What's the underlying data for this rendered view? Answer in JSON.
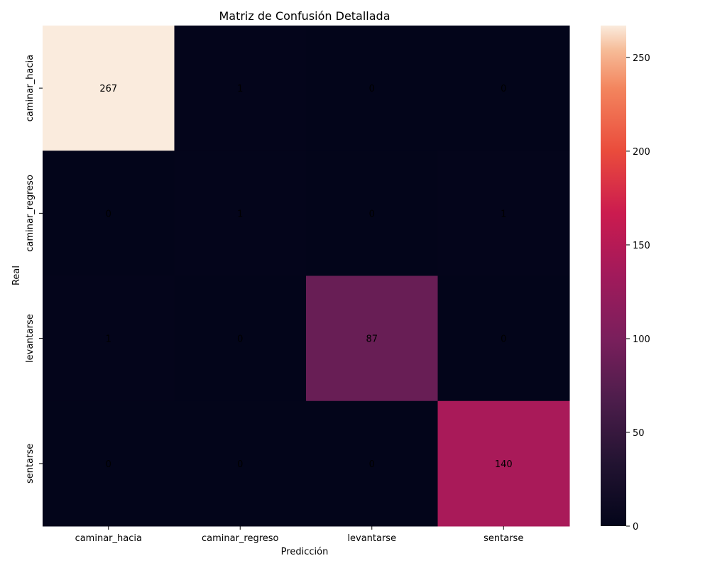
{
  "chart_data": {
    "type": "heatmap",
    "title": "Matriz de Confusión Detallada",
    "xlabel": "Predicción",
    "ylabel": "Real",
    "x_categories": [
      "caminar_hacia",
      "caminar_regreso",
      "levantarse",
      "sentarse"
    ],
    "y_categories": [
      "caminar_hacia",
      "caminar_regreso",
      "levantarse",
      "sentarse"
    ],
    "values": [
      [
        267,
        1,
        0,
        0
      ],
      [
        0,
        1,
        0,
        1
      ],
      [
        1,
        0,
        87,
        0
      ],
      [
        0,
        0,
        0,
        140
      ]
    ],
    "colorbar": {
      "min": 0,
      "max": 267,
      "ticks": [
        0,
        50,
        100,
        150,
        200,
        250
      ],
      "colormap": "rocket"
    }
  }
}
